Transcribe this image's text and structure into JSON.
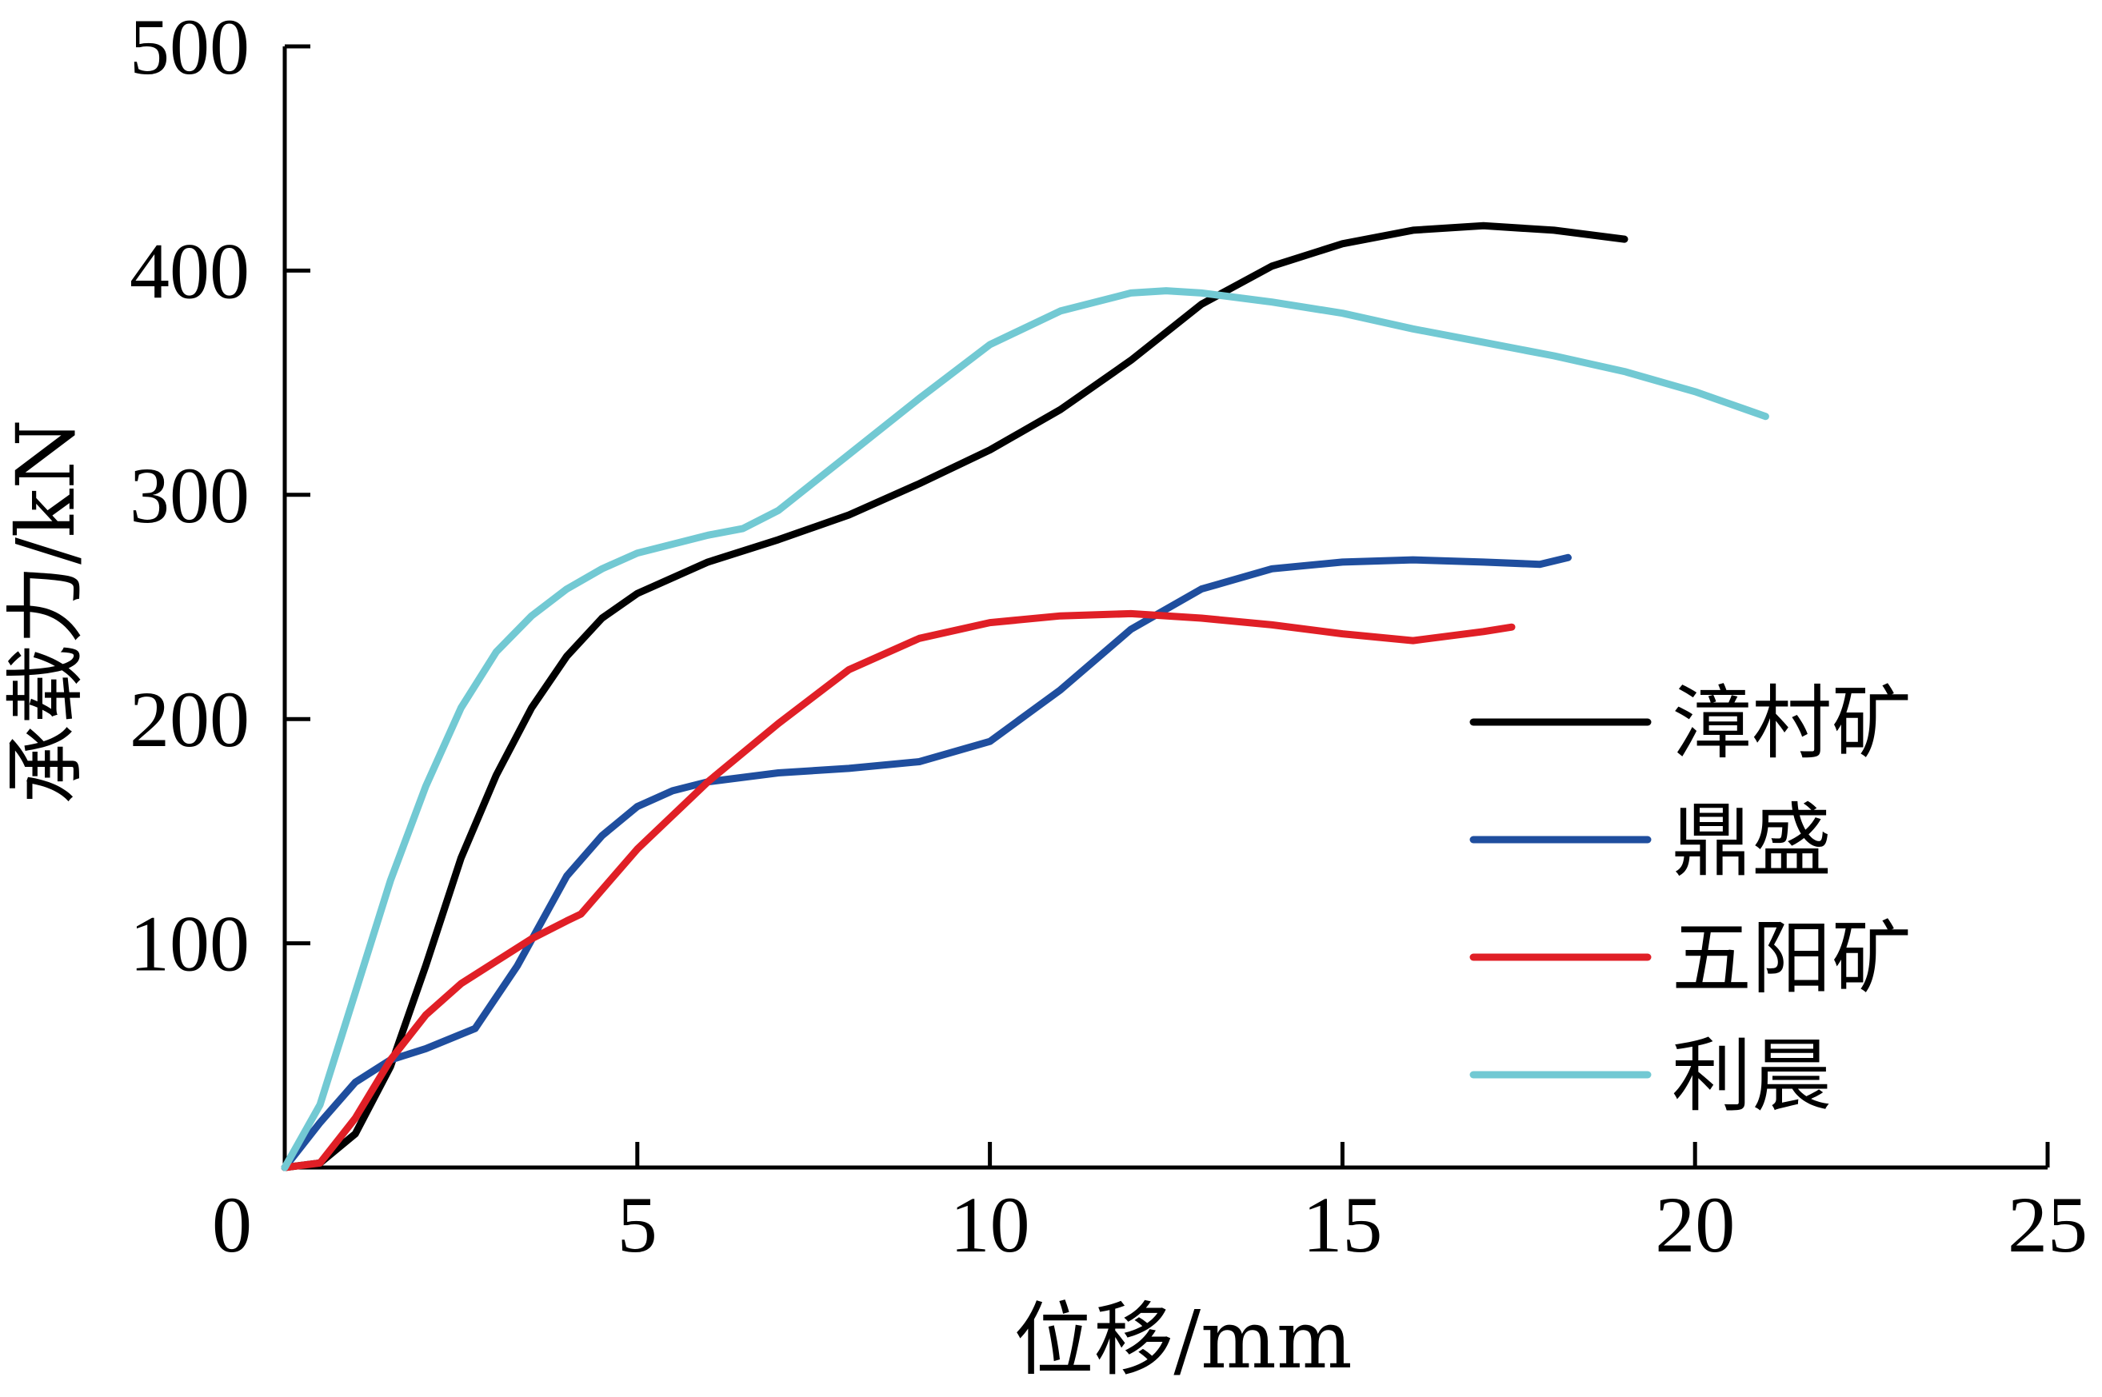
{
  "chart_data": {
    "type": "line",
    "xlabel": "位移/mm",
    "ylabel": "承载力/kN",
    "xlim": [
      0,
      25
    ],
    "ylim": [
      0,
      500
    ],
    "xticks": [
      0,
      5,
      10,
      15,
      20,
      25
    ],
    "yticks": [
      100,
      200,
      300,
      400,
      500
    ],
    "grid": false,
    "legend_position": "right",
    "series": [
      {
        "name": "漳村矿",
        "color": "#000000",
        "points": [
          [
            0,
            0
          ],
          [
            0.5,
            2
          ],
          [
            1,
            15
          ],
          [
            1.5,
            45
          ],
          [
            2,
            90
          ],
          [
            2.5,
            138
          ],
          [
            3,
            175
          ],
          [
            3.5,
            205
          ],
          [
            4,
            228
          ],
          [
            4.5,
            245
          ],
          [
            5,
            256
          ],
          [
            6,
            270
          ],
          [
            7,
            280
          ],
          [
            8,
            291
          ],
          [
            9,
            305
          ],
          [
            10,
            320
          ],
          [
            11,
            338
          ],
          [
            12,
            360
          ],
          [
            13,
            385
          ],
          [
            14,
            402
          ],
          [
            15,
            412
          ],
          [
            16,
            418
          ],
          [
            17,
            420
          ],
          [
            18,
            418
          ],
          [
            19,
            414
          ]
        ]
      },
      {
        "name": "鼎盛",
        "color": "#1f4e9e",
        "points": [
          [
            0,
            0
          ],
          [
            0.5,
            20
          ],
          [
            1,
            38
          ],
          [
            1.5,
            48
          ],
          [
            2,
            53
          ],
          [
            2.7,
            62
          ],
          [
            3.3,
            90
          ],
          [
            4,
            130
          ],
          [
            4.5,
            148
          ],
          [
            5,
            161
          ],
          [
            5.5,
            168
          ],
          [
            6,
            172
          ],
          [
            7,
            176
          ],
          [
            8,
            178
          ],
          [
            9,
            181
          ],
          [
            10,
            190
          ],
          [
            11,
            213
          ],
          [
            12,
            240
          ],
          [
            13,
            258
          ],
          [
            14,
            267
          ],
          [
            15,
            270
          ],
          [
            16,
            271
          ],
          [
            17,
            270
          ],
          [
            17.8,
            269
          ],
          [
            18.2,
            272
          ]
        ]
      },
      {
        "name": "五阳矿",
        "color": "#e01f26",
        "points": [
          [
            0,
            0
          ],
          [
            0.5,
            2
          ],
          [
            1,
            22
          ],
          [
            1.5,
            48
          ],
          [
            2,
            68
          ],
          [
            2.5,
            82
          ],
          [
            3,
            92
          ],
          [
            3.5,
            102
          ],
          [
            4,
            110
          ],
          [
            4.2,
            113
          ],
          [
            5,
            142
          ],
          [
            5.5,
            157
          ],
          [
            6,
            172
          ],
          [
            7,
            198
          ],
          [
            8,
            222
          ],
          [
            9,
            236
          ],
          [
            10,
            243
          ],
          [
            11,
            246
          ],
          [
            12,
            247
          ],
          [
            13,
            245
          ],
          [
            14,
            242
          ],
          [
            15,
            238
          ],
          [
            16,
            235
          ],
          [
            17,
            239
          ],
          [
            17.4,
            241
          ]
        ]
      },
      {
        "name": "利晨",
        "color": "#72c9d3",
        "points": [
          [
            0,
            0
          ],
          [
            0.5,
            28
          ],
          [
            1,
            78
          ],
          [
            1.5,
            128
          ],
          [
            2,
            170
          ],
          [
            2.5,
            205
          ],
          [
            3,
            230
          ],
          [
            3.5,
            246
          ],
          [
            4,
            258
          ],
          [
            4.5,
            267
          ],
          [
            5,
            274
          ],
          [
            6,
            282
          ],
          [
            6.5,
            285
          ],
          [
            7,
            293
          ],
          [
            8,
            318
          ],
          [
            9,
            343
          ],
          [
            10,
            367
          ],
          [
            11,
            382
          ],
          [
            12,
            390
          ],
          [
            12.5,
            391
          ],
          [
            13,
            390
          ],
          [
            14,
            386
          ],
          [
            15,
            381
          ],
          [
            16,
            374
          ],
          [
            17,
            368
          ],
          [
            18,
            362
          ],
          [
            19,
            355
          ],
          [
            20,
            346
          ],
          [
            21,
            335
          ]
        ]
      }
    ]
  }
}
